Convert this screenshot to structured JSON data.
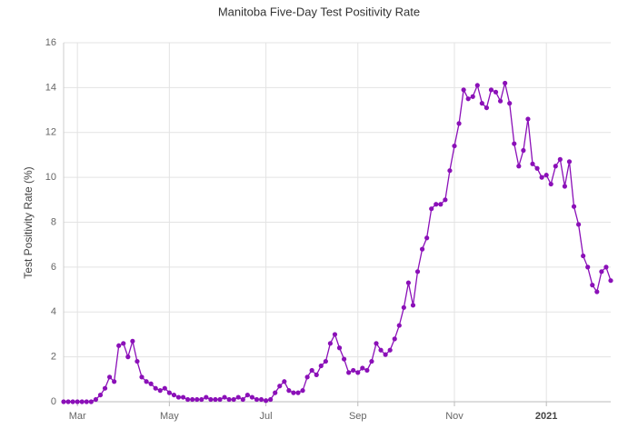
{
  "chart_data": {
    "type": "line",
    "title": "Manitoba Five-Day Test Positivity Rate",
    "y_label": "Test Positivity Rate (%)",
    "color": "#8b10b8",
    "grid": true,
    "ylim": [
      0,
      16
    ],
    "yticks": [
      0,
      2,
      4,
      6,
      8,
      10,
      12,
      14,
      16
    ],
    "categories": [
      null,
      null,
      null,
      "Mar",
      null,
      null,
      null,
      null,
      null,
      null,
      null,
      null,
      null,
      null,
      null,
      null,
      null,
      null,
      null,
      null,
      null,
      null,
      null,
      "May",
      null,
      null,
      null,
      null,
      null,
      null,
      null,
      null,
      null,
      null,
      null,
      null,
      null,
      null,
      null,
      null,
      null,
      null,
      null,
      null,
      "Jul",
      null,
      null,
      null,
      null,
      null,
      null,
      null,
      null,
      null,
      null,
      null,
      null,
      null,
      null,
      null,
      null,
      null,
      null,
      null,
      "Sep",
      null,
      null,
      null,
      null,
      null,
      null,
      null,
      null,
      null,
      null,
      null,
      null,
      null,
      null,
      null,
      null,
      null,
      null,
      null,
      null,
      "Nov",
      null,
      null,
      null,
      null,
      null,
      null,
      null,
      null,
      null,
      null,
      null,
      null,
      null,
      null,
      null,
      null,
      null,
      null,
      null,
      "2021",
      null,
      null,
      null,
      null,
      null,
      null,
      null,
      null,
      null,
      null,
      null,
      null,
      null,
      null
    ],
    "values": [
      0,
      0,
      0,
      0,
      0,
      0,
      0,
      0.1,
      0.3,
      0.6,
      1.1,
      0.9,
      2.5,
      2.6,
      2.0,
      2.7,
      1.8,
      1.1,
      0.9,
      0.8,
      0.6,
      0.5,
      0.6,
      0.4,
      0.3,
      0.2,
      0.2,
      0.1,
      0.1,
      0.1,
      0.1,
      0.2,
      0.1,
      0.1,
      0.1,
      0.2,
      0.1,
      0.1,
      0.2,
      0.1,
      0.3,
      0.2,
      0.1,
      0.1,
      0.05,
      0.1,
      0.4,
      0.7,
      0.9,
      0.5,
      0.4,
      0.4,
      0.5,
      1.1,
      1.4,
      1.2,
      1.6,
      1.8,
      2.6,
      3.0,
      2.4,
      1.9,
      1.3,
      1.4,
      1.3,
      1.5,
      1.4,
      1.8,
      2.6,
      2.3,
      2.1,
      2.3,
      2.8,
      3.4,
      4.2,
      5.3,
      4.3,
      5.8,
      6.8,
      7.3,
      8.6,
      8.8,
      8.8,
      9.0,
      10.3,
      11.4,
      12.4,
      13.9,
      13.5,
      13.6,
      14.1,
      13.3,
      13.1,
      13.9,
      13.8,
      13.4,
      14.2,
      13.3,
      11.5,
      10.5,
      11.2,
      12.6,
      10.6,
      10.4,
      10.0,
      10.1,
      9.7,
      10.5,
      10.8,
      9.6,
      10.7,
      8.7,
      7.9,
      6.5,
      6.0,
      5.2,
      4.9,
      5.8,
      6.0,
      5.4
    ]
  }
}
